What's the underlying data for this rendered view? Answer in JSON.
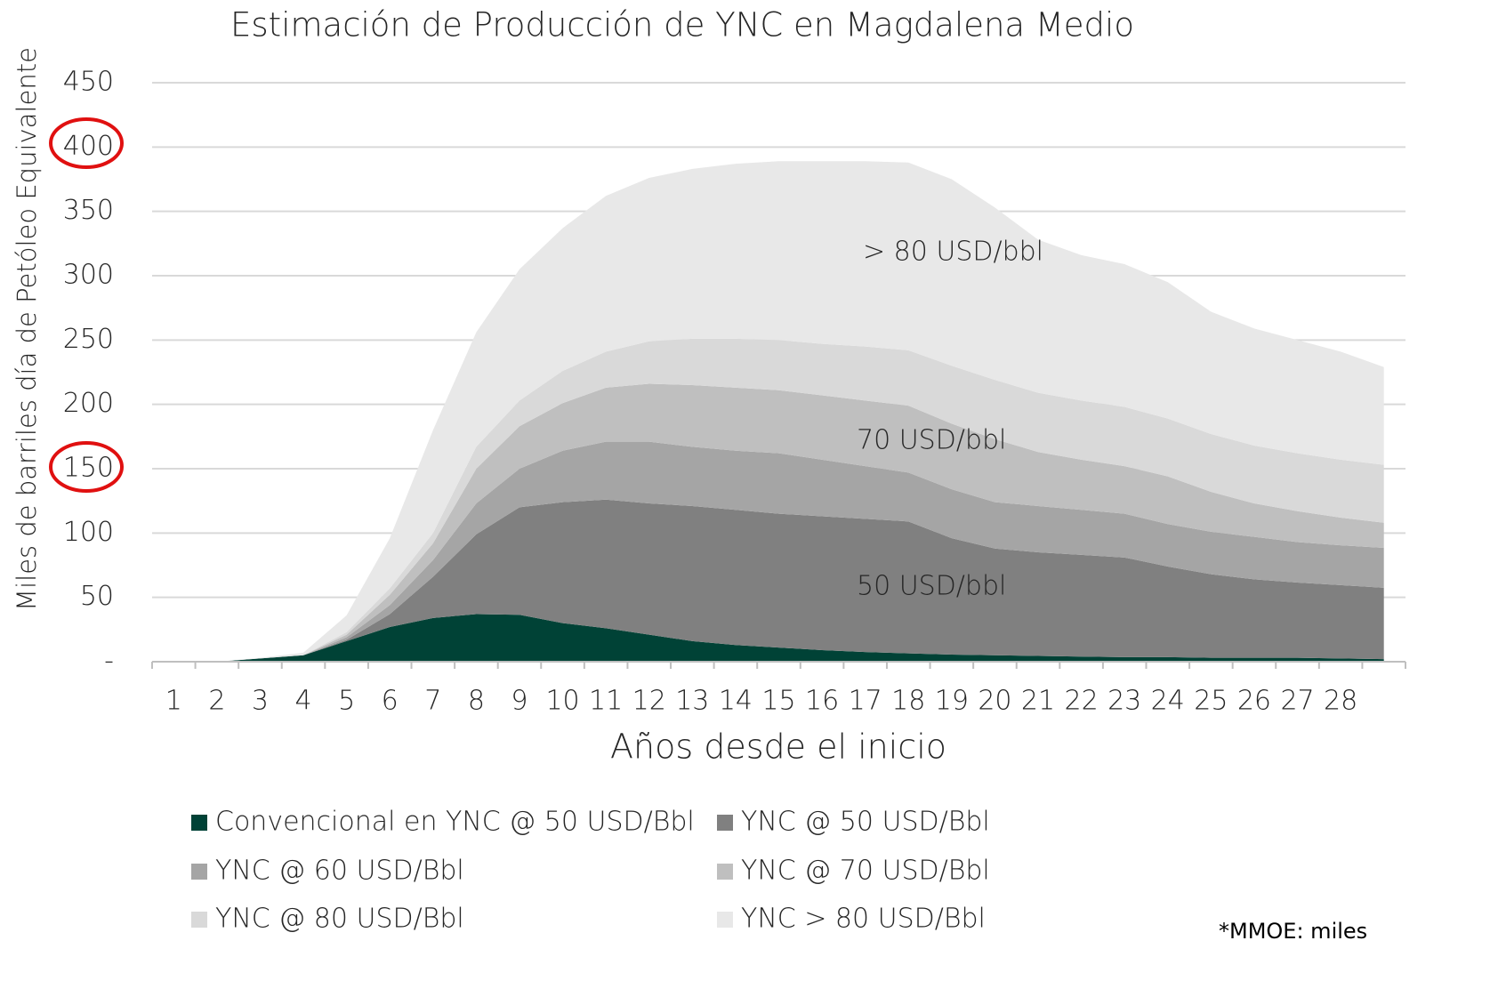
{
  "chart_data": {
    "type": "stacked_area",
    "title": "Estimación de Producción de YNC en Magdalena Medio",
    "y_label": "Miles de barriles día de Petóleo Equivalente",
    "x_label": "Años desde el inicio",
    "categories": [
      "1",
      "2",
      "3",
      "4",
      "5",
      "6",
      "7",
      "8",
      "9",
      "10",
      "11",
      "12",
      "13",
      "14",
      "15",
      "16",
      "17",
      "18",
      "19",
      "20",
      "21",
      "22",
      "23",
      "24",
      "25",
      "26",
      "27",
      "28",
      null
    ],
    "series": [
      {
        "name": "Convencional en YNC @ 50 USD/Bbl",
        "color": "#004236",
        "values": [
          0,
          0,
          2.5,
          5,
          16,
          27,
          34,
          37,
          36.5,
          30,
          26,
          21,
          16,
          13,
          11,
          9,
          7.5,
          6.5,
          5.5,
          5,
          4.5,
          4,
          3.5,
          3.5,
          3,
          3,
          3,
          2.5,
          2
        ]
      },
      {
        "name": "YNC @ 50 USD/Bbl",
        "color": "#808080",
        "values": [
          0,
          0,
          0,
          0,
          1,
          10,
          32,
          62,
          83.5,
          94,
          100,
          102,
          105,
          105,
          104,
          104,
          103.5,
          102.5,
          90.5,
          83,
          80.5,
          79,
          77.5,
          70.5,
          65,
          61,
          58.5,
          57,
          55.5
        ]
      },
      {
        "name": "YNC @ 60 USD/Bbl",
        "color": "#a5a5a5",
        "values": [
          0,
          0,
          0,
          0,
          2,
          7,
          13,
          24,
          30,
          40,
          45,
          48,
          46,
          46,
          47,
          44,
          41,
          38,
          38,
          36,
          36,
          35,
          34,
          33,
          33,
          33,
          31.5,
          31,
          31
        ]
      },
      {
        "name": "YNC @ 70 USD/Bbl",
        "color": "#bfbfbf",
        "values": [
          0,
          0,
          0,
          0,
          2,
          8,
          13,
          27,
          33,
          37,
          42,
          45,
          48,
          49,
          49,
          50,
          51,
          52,
          51,
          49,
          42,
          39,
          37,
          37,
          31,
          26,
          24,
          21.5,
          19.5
        ]
      },
      {
        "name": "YNC @ 80 USD/Bbl",
        "color": "#d9d9d9",
        "values": [
          0,
          0,
          0,
          0,
          2,
          5,
          8,
          17,
          20,
          25,
          28,
          33,
          36,
          38,
          39,
          40,
          42,
          43,
          45,
          46,
          46,
          46,
          46,
          45,
          45,
          45,
          45,
          45,
          45
        ]
      },
      {
        "name": "YNC > 80 USD/Bbl",
        "color": "#e8e8e8",
        "values": [
          0,
          0,
          0.5,
          2,
          13,
          39,
          80,
          89,
          102,
          111,
          121,
          127,
          132,
          136,
          139,
          142,
          144,
          146,
          145,
          134,
          119,
          113,
          111,
          106,
          95,
          91,
          88,
          84,
          76
        ]
      }
    ],
    "ylim": [
      0,
      450
    ],
    "yticks": [
      {
        "value": 0,
        "label": "-"
      },
      50,
      100,
      150,
      200,
      250,
      300,
      350,
      400,
      450
    ],
    "grid": true,
    "annotations": [
      "> 80 USD/bbl",
      "70 USD/bbl",
      "50 USD/bbl"
    ],
    "footnote": "*MMOE: miles"
  }
}
